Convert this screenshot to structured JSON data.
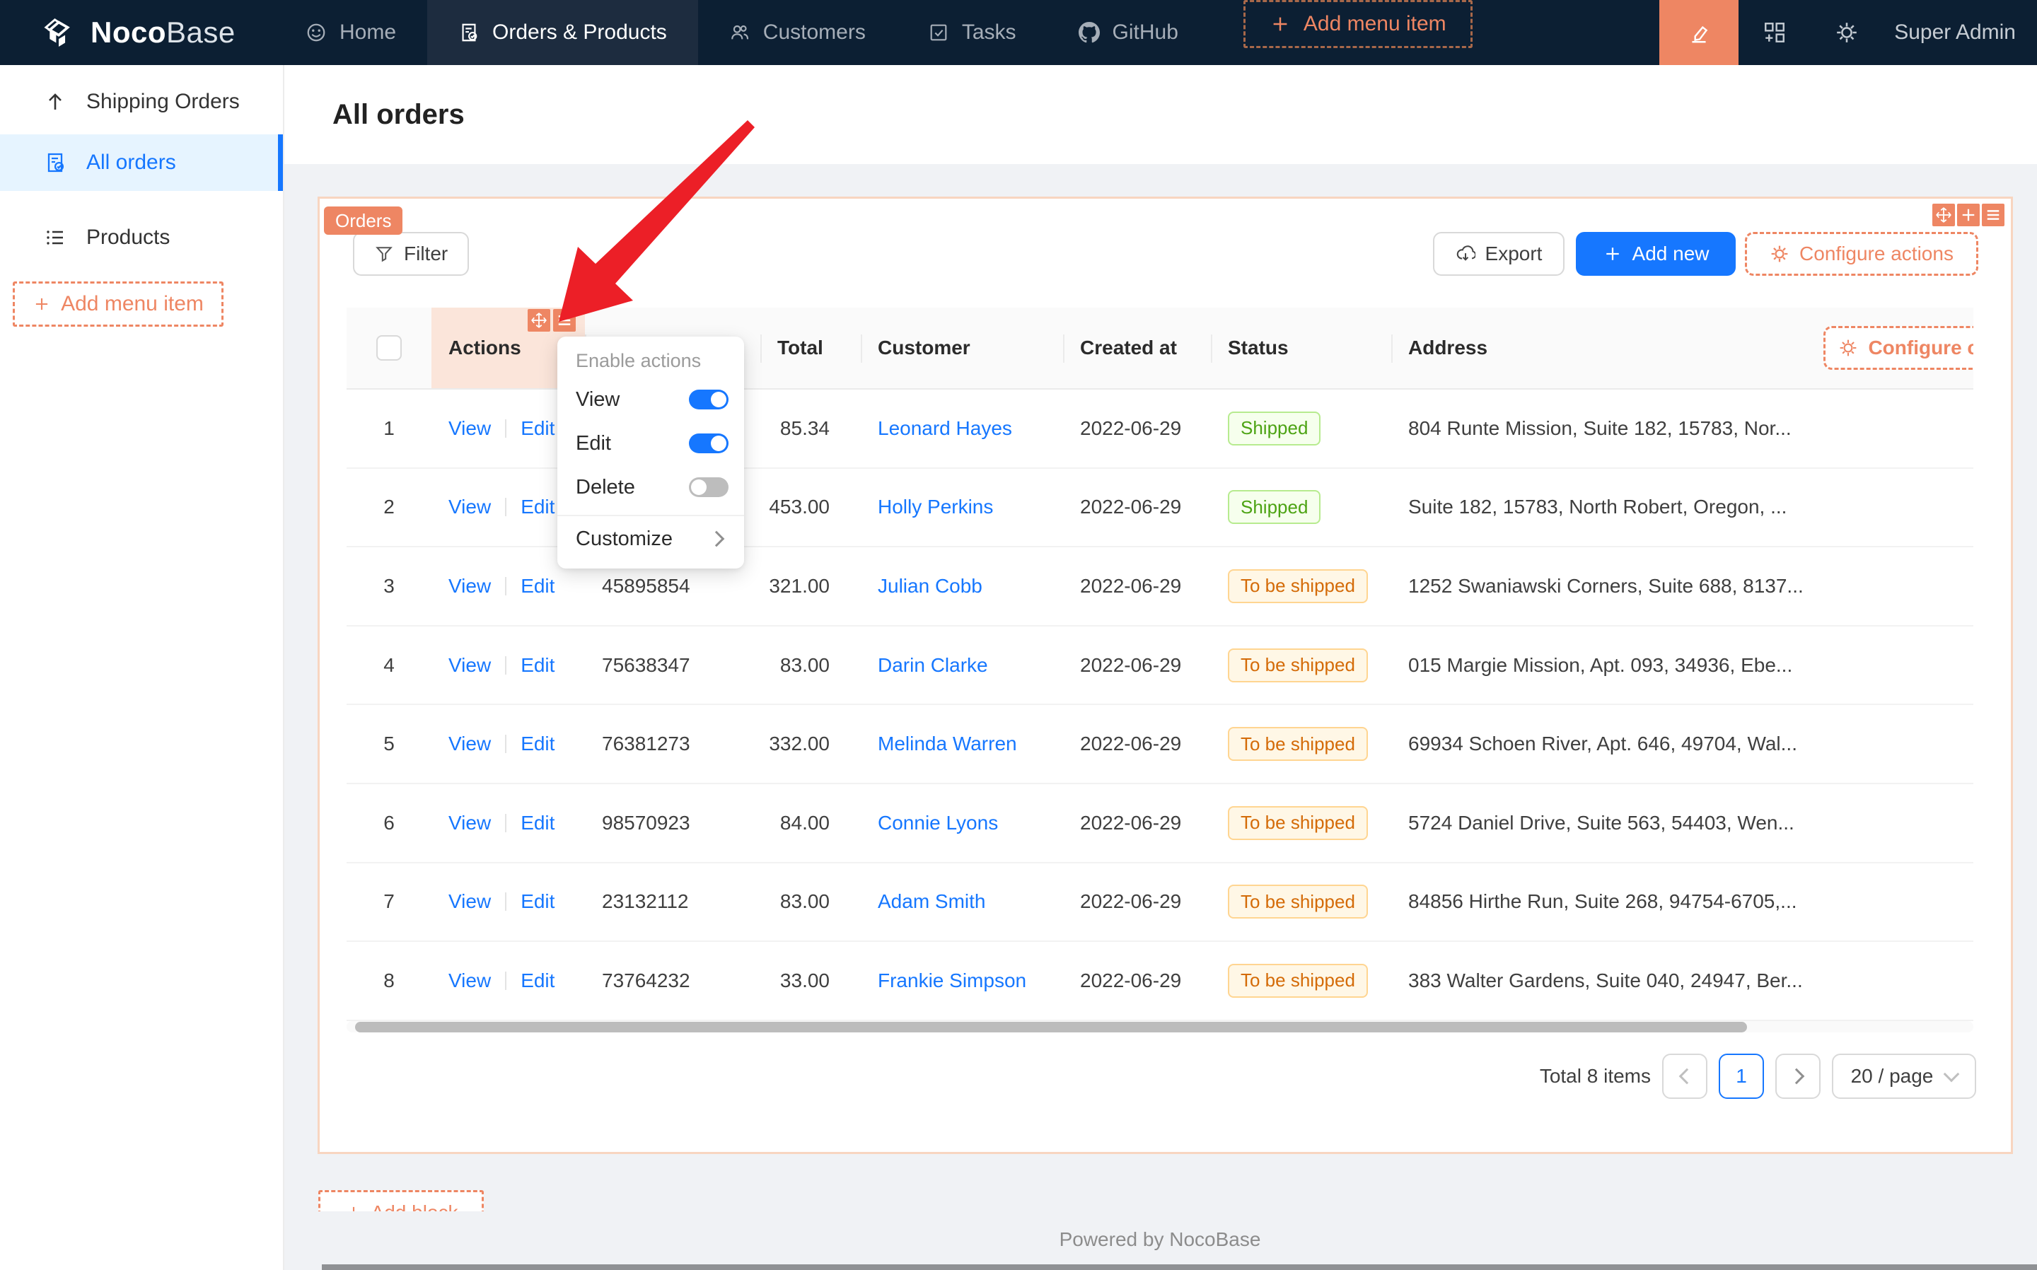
{
  "navbar": {
    "brand": {
      "bold": "Noco",
      "light": "Base"
    },
    "items": [
      {
        "label": "Home",
        "icon": "smiley-icon",
        "active": false,
        "dashed": false
      },
      {
        "label": "Orders & Products",
        "icon": "file-done-icon",
        "active": true,
        "dashed": false
      },
      {
        "label": "Customers",
        "icon": "team-icon",
        "active": false,
        "dashed": false
      },
      {
        "label": "Tasks",
        "icon": "check-square-icon",
        "active": false,
        "dashed": false
      },
      {
        "label": "GitHub",
        "icon": "github-icon",
        "active": false,
        "dashed": false
      },
      {
        "label": "Add menu item",
        "icon": "plus-icon",
        "active": false,
        "dashed": true
      }
    ],
    "right": {
      "icons": [
        "highlighter-icon",
        "appstore-add-icon",
        "gear-icon"
      ],
      "user": "Super Admin"
    }
  },
  "sidebar": {
    "items": [
      {
        "label": "Shipping Orders",
        "icon": "arrow-up-icon",
        "active": false
      },
      {
        "label": "All orders",
        "icon": "file-done-icon",
        "active": true
      },
      {
        "label": "Products",
        "icon": "list-icon",
        "active": false
      }
    ],
    "add_button": "Add menu item"
  },
  "page": {
    "title": "All orders"
  },
  "block": {
    "label": "Orders",
    "filter_button": "Filter",
    "export_button": "Export",
    "add_new_button": "Add new",
    "configure_actions_button": "Configure actions",
    "configure_columns_button": "Configure columns"
  },
  "dropdown": {
    "title": "Enable actions",
    "items": [
      {
        "label": "View",
        "enabled": true
      },
      {
        "label": "Edit",
        "enabled": true
      },
      {
        "label": "Delete",
        "enabled": false
      }
    ],
    "customize_label": "Customize"
  },
  "table": {
    "columns": [
      "",
      "Actions",
      "",
      "Total",
      "Customer",
      "Created at",
      "Status",
      "Address",
      ""
    ],
    "rows": [
      {
        "index": "1",
        "actions": [
          "View",
          "Edit"
        ],
        "order_no": "",
        "total": "85.34",
        "customer": "Leonard Hayes",
        "created_at": "2022-06-29",
        "status": "Shipped",
        "status_variant": "green",
        "address": "804 Runte Mission, Suite 182, 15783, Nor..."
      },
      {
        "index": "2",
        "actions": [
          "View",
          "Edit"
        ],
        "order_no": "",
        "total": "453.00",
        "customer": "Holly Perkins",
        "created_at": "2022-06-29",
        "status": "Shipped",
        "status_variant": "green",
        "address": "Suite 182, 15783, North Robert, Oregon, ..."
      },
      {
        "index": "3",
        "actions": [
          "View",
          "Edit"
        ],
        "order_no": "45895854",
        "total": "321.00",
        "customer": "Julian Cobb",
        "created_at": "2022-06-29",
        "status": "To be shipped",
        "status_variant": "orange",
        "address": "1252 Swaniawski Corners, Suite 688, 8137..."
      },
      {
        "index": "4",
        "actions": [
          "View",
          "Edit"
        ],
        "order_no": "75638347",
        "total": "83.00",
        "customer": "Darin Clarke",
        "created_at": "2022-06-29",
        "status": "To be shipped",
        "status_variant": "orange",
        "address": "015 Margie Mission, Apt. 093, 34936, Ebe..."
      },
      {
        "index": "5",
        "actions": [
          "View",
          "Edit"
        ],
        "order_no": "76381273",
        "total": "332.00",
        "customer": "Melinda Warren",
        "created_at": "2022-06-29",
        "status": "To be shipped",
        "status_variant": "orange",
        "address": "69934 Schoen River, Apt. 646, 49704, Wal..."
      },
      {
        "index": "6",
        "actions": [
          "View",
          "Edit"
        ],
        "order_no": "98570923",
        "total": "84.00",
        "customer": "Connie Lyons",
        "created_at": "2022-06-29",
        "status": "To be shipped",
        "status_variant": "orange",
        "address": "5724 Daniel Drive, Suite 563, 54403, Wen..."
      },
      {
        "index": "7",
        "actions": [
          "View",
          "Edit"
        ],
        "order_no": "23132112",
        "total": "83.00",
        "customer": "Adam Smith",
        "created_at": "2022-06-29",
        "status": "To be shipped",
        "status_variant": "orange",
        "address": "84856 Hirthe Run, Suite 268, 94754-6705,..."
      },
      {
        "index": "8",
        "actions": [
          "View",
          "Edit"
        ],
        "order_no": "73764232",
        "total": "33.00",
        "customer": "Frankie Simpson",
        "created_at": "2022-06-29",
        "status": "To be shipped",
        "status_variant": "orange",
        "address": "383 Walter Gardens, Suite 040, 24947, Ber..."
      }
    ]
  },
  "pagination": {
    "total_text": "Total 8 items",
    "current_page": "1",
    "page_size": "20 / page"
  },
  "footer": {
    "text": "Powered by NocoBase"
  },
  "clipped": {
    "add_block_button": "Add block"
  },
  "colors": {
    "navbar_bg": "#0c1f33",
    "accent_orange": "#ee8663",
    "primary_blue": "#1677ff",
    "status_shipped": {
      "text": "#4ca313",
      "bg": "#f6ffed",
      "border": "#b7eb8f"
    },
    "status_to_be_shipped": {
      "text": "#d46b08",
      "bg": "#fff7e6",
      "border": "#ffd591"
    },
    "annotation_arrow": "#ec1f27"
  }
}
